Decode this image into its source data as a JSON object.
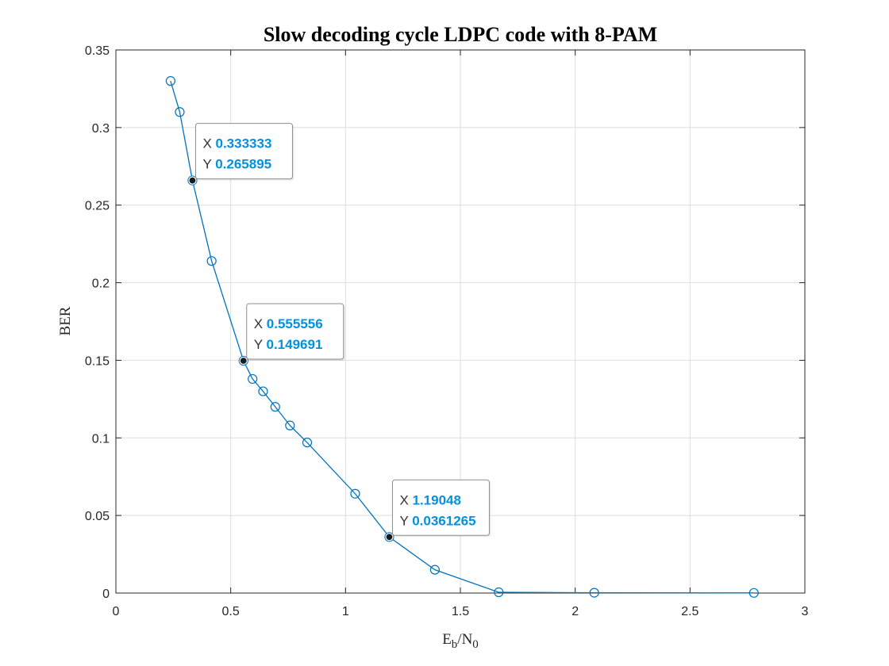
{
  "chart_data": {
    "type": "line",
    "title": "Slow decoding cycle LDPC code with 8-PAM",
    "xlabel": {
      "main": "E",
      "sub1": "b",
      "sep": "/N",
      "sub2": "0"
    },
    "ylabel": "BER",
    "xlim": [
      0,
      3
    ],
    "ylim": [
      0,
      0.35
    ],
    "xticks": [
      0,
      0.5,
      1,
      1.5,
      2,
      2.5,
      3
    ],
    "xtick_labels": [
      "0",
      "0.5",
      "1",
      "1.5",
      "2",
      "2.5",
      "3"
    ],
    "yticks": [
      0,
      0.05,
      0.1,
      0.15,
      0.2,
      0.25,
      0.3,
      0.35
    ],
    "ytick_labels": [
      "0",
      "0.05",
      "0.1",
      "0.15",
      "0.2",
      "0.25",
      "0.3",
      "0.35"
    ],
    "grid": true,
    "line_color": "#0072bd",
    "marker": "circle",
    "x": [
      0.238,
      0.278,
      0.333333,
      0.417,
      0.555556,
      0.595,
      0.641,
      0.694,
      0.758,
      0.833,
      1.042,
      1.19048,
      1.389,
      1.667,
      2.083,
      2.778
    ],
    "y": [
      0.33,
      0.31,
      0.265895,
      0.214,
      0.149691,
      0.138,
      0.13,
      0.12,
      0.108,
      0.097,
      0.064,
      0.0361265,
      0.015,
      0.0005,
      0.0002,
      0.0001
    ],
    "datatips": [
      {
        "x_name": "X",
        "x_value": "0.333333",
        "y_name": "Y",
        "y_value": "0.265895",
        "x": 0.333333,
        "y": 0.265895
      },
      {
        "x_name": "X",
        "x_value": "0.555556",
        "y_name": "Y",
        "y_value": "0.149691",
        "x": 0.555556,
        "y": 0.149691
      },
      {
        "x_name": "X",
        "x_value": "1.19048",
        "y_name": "Y",
        "y_value": "0.0361265",
        "x": 1.19048,
        "y": 0.0361265
      }
    ]
  }
}
